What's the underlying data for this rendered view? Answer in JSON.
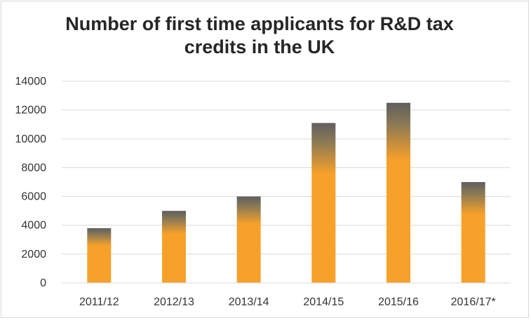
{
  "chart_data": {
    "type": "bar",
    "title": "Number of first time applicants for R&D tax credits in the UK",
    "categories": [
      "2011/12",
      "2012/13",
      "2013/14",
      "2014/15",
      "2015/16",
      "2016/17*"
    ],
    "values": [
      3800,
      5000,
      6000,
      11100,
      12500,
      7000
    ],
    "xlabel": "",
    "ylabel": "",
    "ylim": [
      0,
      14000
    ],
    "yticks": [
      "0",
      "2000",
      "4000",
      "6000",
      "8000",
      "10000",
      "12000",
      "14000"
    ],
    "grid": true,
    "legend": "none",
    "colors": {
      "bar_main": "#f7a12a",
      "bar_top": "#5f5f5f",
      "grid": "#d9d9d9",
      "axis": "#d9d9d9"
    }
  }
}
